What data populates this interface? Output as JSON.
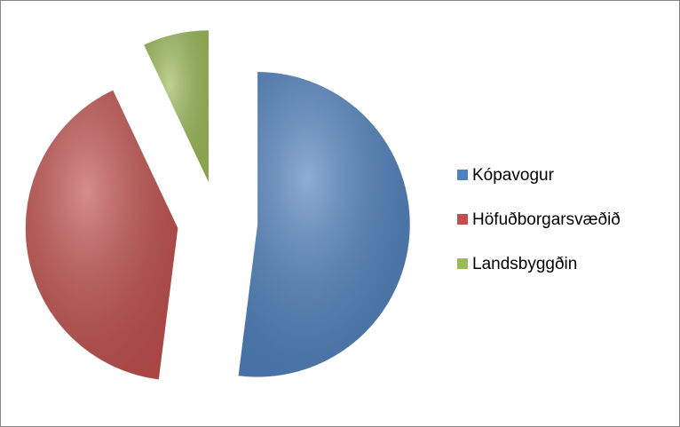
{
  "chart_data": {
    "type": "pie",
    "categories": [
      "Kópavogur",
      "Höfuðborgarsvæðið",
      "Landsbyggðin"
    ],
    "values": [
      52,
      41,
      7
    ],
    "colors": [
      "#4f81bd",
      "#c0504d",
      "#9bbb59"
    ],
    "exploded": true,
    "legend": "right"
  }
}
